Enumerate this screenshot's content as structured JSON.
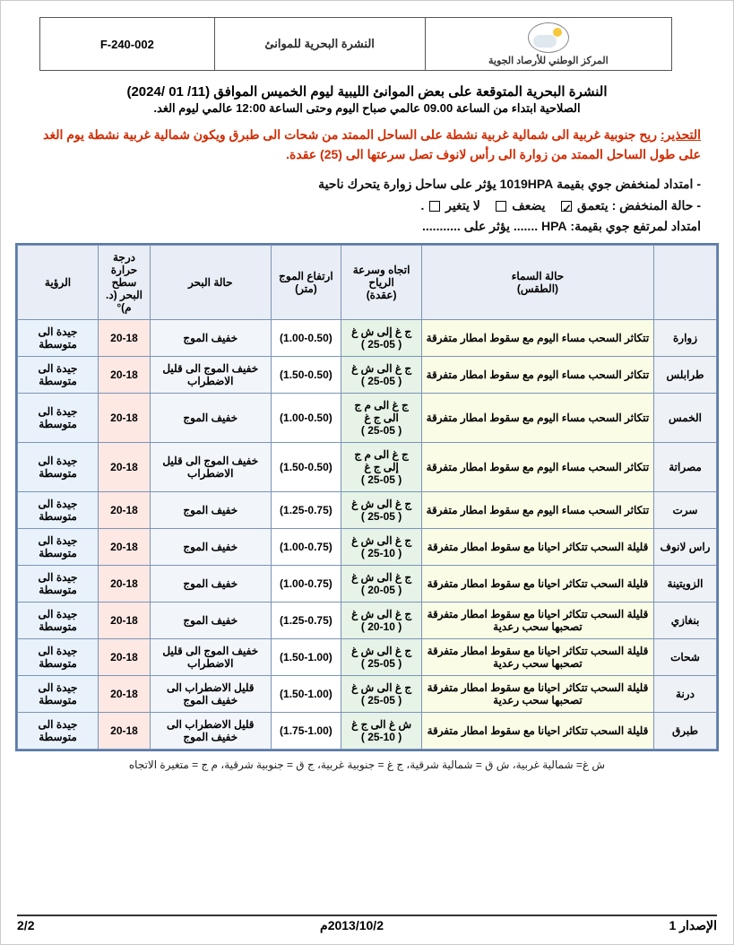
{
  "header": {
    "org": "المركز الوطني للأرصاد الجوية",
    "doc_title": "النشرة البحرية للموانئ",
    "code": "F-240-002"
  },
  "title": {
    "main": "النشرة البحرية المتوقعة على بعض الموانئ الليبية ليوم الخميس الموافق (11/ 01 /2024)",
    "sub": "الصلاحية ابتداء من الساعة 09.00 عالمي صباح اليوم وحتى الساعة 12:00 عالمي ليوم الغد."
  },
  "warning": {
    "label": "التحذير:",
    "text": "ريح جنوبية غربية الى شمالية غربية نشطة على الساحل الممتد من شحات الى طبرق ويكون شمالية غربية نشطة يوم الغد على طول الساحل الممتد من زوارة الى رأس لانوف تصل سرعتها الى (25) عقدة."
  },
  "synoptic": {
    "low": "- امتداد لمنخفض جوي بقيمة 1019HPA    يؤثر على ساحل زوارة يتحرك ناحية",
    "state_label": "- حالة المنخفض  :",
    "opt_deepen": "يتعمق",
    "opt_weaken": "يضعف",
    "opt_same": "لا يتغير",
    "checked": "deepen",
    "high": "امتداد لمرتفع جوي بقيمة: HPA ....... يؤثر على ..........."
  },
  "columns": {
    "port": "",
    "sky": "حالة السماء\n(الطقس)",
    "wind": "اتجاه وسرعة الرياح\n(عقدة)",
    "wave": "ارتفاع الموج (متر)",
    "sea": "حالة البحر",
    "temp": "درجة حرارة سطح البحر (د. م)°",
    "vis": "الرؤية"
  },
  "rows": [
    {
      "port": "زوارة",
      "sky": "تتكاثر السحب مساء اليوم مع سقوط امطار متفرقة",
      "wind": "ج غ إلى ش غ\n( 25-05 )",
      "wave": "(1.00-0.50)",
      "sea": "خفيف الموج",
      "temp": "20-18",
      "vis": "جيدة الى متوسطة"
    },
    {
      "port": "طرابلس",
      "sky": "تتكاثر السحب مساء اليوم مع سقوط امطار متفرقة",
      "wind": "ج غ الى ش غ\n( 25-05 )",
      "wave": "(1.50-0.50)",
      "sea": "خفيف الموج الى قليل الاضطراب",
      "temp": "20-18",
      "vis": "جيدة الى متوسطة"
    },
    {
      "port": "الخمس",
      "sky": "تتكاثر السحب مساء اليوم مع سقوط امطار متفرقة",
      "wind": "ج غ الى م ج الى ج غ\n( 25-05 )",
      "wave": "(1.00-0.50)",
      "sea": "خفيف الموج",
      "temp": "20-18",
      "vis": "جيدة الى متوسطة"
    },
    {
      "port": "مصراتة",
      "sky": "تتكاثر السحب مساء اليوم مع سقوط امطار متفرقة",
      "wind": "ج غ الى م ج إلى ج غ\n( 25-05 )",
      "wave": "(1.50-0.50)",
      "sea": "خفيف الموج الى قليل الاضطراب",
      "temp": "20-18",
      "vis": "جيدة الى متوسطة"
    },
    {
      "port": "سرت",
      "sky": "تتكاثر السحب مساء اليوم مع سقوط امطار متفرقة",
      "wind": "ج غ الى ش غ\n( 25-05 )",
      "wave": "(1.25-0.75)",
      "sea": "خفيف الموج",
      "temp": "20-18",
      "vis": "جيدة الى متوسطة"
    },
    {
      "port": "راس لانوف",
      "sky": "قليلة السحب تتكاثر احيانا مع سقوط امطار متفرقة",
      "wind": "ج غ الى ش غ\n( 25-10 )",
      "wave": "(1.00-0.75)",
      "sea": "خفيف الموج",
      "temp": "20-18",
      "vis": "جيدة الى متوسطة"
    },
    {
      "port": "الزويتينة",
      "sky": "قليلة السحب تتكاثر احيانا مع سقوط امطار متفرقة",
      "wind": "ج غ الى ش غ\n( 20-05 )",
      "wave": "(1.00-0.75)",
      "sea": "خفيف الموج",
      "temp": "20-18",
      "vis": "جيدة الى متوسطة"
    },
    {
      "port": "بنغازي",
      "sky": "قليلة السحب تتكاثر احيانا مع سقوط امطار متفرقة تصحبها سحب رعدية",
      "wind": "ج غ الى ش غ\n( 20-10 )",
      "wave": "(1.25-0.75)",
      "sea": "خفيف الموج",
      "temp": "20-18",
      "vis": "جيدة الى متوسطة"
    },
    {
      "port": "شحات",
      "sky": "قليلة السحب تتكاثر احيانا مع سقوط امطار متفرقة تصحبها سحب رعدية",
      "wind": "ج غ الى ش غ\n( 25-05 )",
      "wave": "(1.50-1.00)",
      "sea": "خفيف الموج الى قليل الاضطراب",
      "temp": "20-18",
      "vis": "جيدة الى متوسطة"
    },
    {
      "port": "درنة",
      "sky": "قليلة السحب تتكاثر احيانا مع سقوط امطار متفرقة تصحبها سحب رعدية",
      "wind": "ج غ الى ش غ\n( 25-05 )",
      "wave": "(1.50-1.00)",
      "sea": "قليل الاضطراب الى خفيف الموج",
      "temp": "20-18",
      "vis": "جيدة الى متوسطة"
    },
    {
      "port": "طبرق",
      "sky": "قليلة السحب تتكاثر احيانا مع سقوط امطار متفرقة",
      "wind": "ش غ الى ج غ\n( 25-10 )",
      "wave": "(1.75-1.00)",
      "sea": "قليل الاضطراب الى خفيف الموج",
      "temp": "20-18",
      "vis": "جيدة الى متوسطة"
    }
  ],
  "legend": "ش غ= شمالية غربية، ش ق = شمالية شرقية، ج غ = جنوبية غربية، ج ق = جنوبية شرقية، م ج = متغيرة الاتجاه",
  "footer": {
    "issue": "الإصدار 1",
    "date": "2013/10/2م",
    "page": "2/2"
  },
  "style": {
    "column_bg": {
      "port": "#eef1f6",
      "sky": "#fbfce6",
      "wind": "#e6f3e6",
      "wave": "#ffffff",
      "sea": "#f2f5fa",
      "temp": "#fde8e4",
      "vis": "#e9f2fb"
    },
    "border_color": "#7b94b8",
    "outer_border": "#5b7aa8",
    "warn_color": "#d12a00"
  }
}
